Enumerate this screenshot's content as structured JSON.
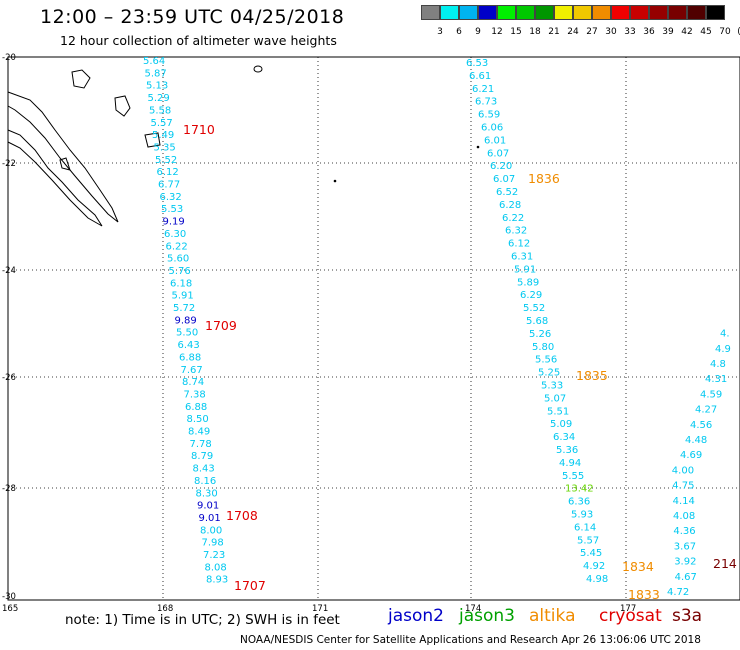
{
  "header": {
    "title": "12:00 – 23:59 UTC 04/25/2018",
    "subtitle": "12 hour collection of altimeter wave heights"
  },
  "colorbar": {
    "labels": [
      "3",
      "6",
      "9",
      "12",
      "15",
      "18",
      "21",
      "24",
      "27",
      "30",
      "33",
      "36",
      "39",
      "42",
      "45",
      "70",
      "(ft)"
    ],
    "colors": [
      "#808080",
      "#00f0f0",
      "#00b4f0",
      "#0000c8",
      "#00f000",
      "#00c800",
      "#009600",
      "#f0f000",
      "#f0c800",
      "#f08c00",
      "#f00000",
      "#c80000",
      "#960000",
      "#780000",
      "#500000",
      "#000000"
    ]
  },
  "map": {
    "lat_labels": [
      "-20",
      "-22",
      "-24",
      "-26",
      "-28",
      "-30"
    ],
    "lon_labels": [
      "165",
      "168",
      "171",
      "174",
      "177"
    ]
  },
  "tracks": [
    {
      "name": "track-1710",
      "time": "1710",
      "time_color": "#e00000",
      "values": [
        "5.64",
        "5.87",
        "5.13",
        "5.29",
        "5.58",
        "5.57",
        "5.49",
        "5.35",
        "5.52",
        "6.12",
        "6.77",
        "6.32",
        "5.53",
        "9.19",
        "6.30",
        "6.22",
        "5.60",
        "5.76",
        "6.18",
        "5.91",
        "5.72",
        "9.89",
        "5.50",
        "6.43",
        "6.88",
        "7.67",
        "8.74",
        "7.38",
        "6.88",
        "8.50",
        "8.49",
        "7.78",
        "8.79",
        "8.43",
        "8.16",
        "8.30",
        "9.01",
        "9.01",
        "8.00",
        "7.98",
        "7.23",
        "8.08",
        "8.93"
      ],
      "colors": [
        "c",
        "c",
        "c",
        "c",
        "c",
        "c",
        "c",
        "c",
        "c",
        "c",
        "c",
        "c",
        "c",
        "b",
        "c",
        "c",
        "c",
        "c",
        "c",
        "c",
        "c",
        "b",
        "c",
        "c",
        "c",
        "c",
        "c",
        "c",
        "c",
        "c",
        "c",
        "c",
        "c",
        "c",
        "c",
        "c",
        "b",
        "b",
        "c",
        "c",
        "c",
        "c",
        "c"
      ],
      "times": [
        "1710",
        "1709",
        "1708",
        "1707"
      ]
    },
    {
      "name": "track-1836",
      "values": [
        "6.53",
        "6.61",
        "6.21",
        "6.73",
        "6.59",
        "6.06",
        "6.01",
        "6.07",
        "6.20",
        "6.07",
        "6.52",
        "6.28",
        "6.22",
        "6.32",
        "6.12",
        "6.31",
        "5.91",
        "5.89",
        "6.29",
        "5.52",
        "5.68",
        "5.26",
        "5.80",
        "5.56",
        "5.25",
        "5.33",
        "5.07",
        "5.51",
        "5.09",
        "6.34",
        "5.36",
        "4.94",
        "5.55",
        "13.42",
        "6.36",
        "5.93",
        "6.14",
        "5.57",
        "5.45",
        "4.92",
        "4.98"
      ],
      "times": [
        "1836",
        "1835",
        "1834",
        "1833"
      ]
    },
    {
      "name": "track-214",
      "values": [
        "4.72",
        "4.67",
        "3.92",
        "3.67",
        "4.36",
        "4.08",
        "4.14",
        "4.75",
        "4.00",
        "4.69",
        "4.48",
        "4.56",
        "4.27",
        "4.59",
        "4.31",
        "4.8",
        "4.9",
        "4."
      ],
      "times": [
        "214"
      ]
    }
  ],
  "footer": {
    "note": "note: 1) Time is in UTC; 2) SWH is in feet",
    "legend": [
      {
        "label": "jason2",
        "color": "#0000c8"
      },
      {
        "label": "jason3",
        "color": "#00a000"
      },
      {
        "label": "altika",
        "color": "#f08c00"
      },
      {
        "label": "cryosat",
        "color": "#e00000"
      },
      {
        "label": "s3a",
        "color": "#780000"
      }
    ],
    "credit": "NOAA/NESDIS Center for Satellite Applications and Research   Apr 26 13:06:06 UTC 2018"
  }
}
